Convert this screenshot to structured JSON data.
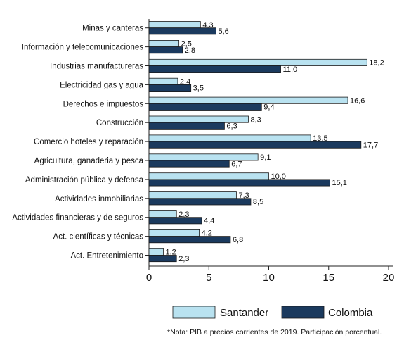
{
  "chart_data": {
    "type": "bar",
    "orientation": "horizontal",
    "categories": [
      "Minas y canteras",
      "Información y telecomunicaciones",
      "Industrias manufactureras",
      "Electricidad gas y agua",
      "Derechos e impuestos",
      "Construcción",
      "Comercio hoteles y reparación",
      "Agricultura, ganaderia y pesca",
      "Administración pública y defensa",
      "Actividades inmobiliarias",
      "Actividades financieras y de seguros",
      "Act. científicas y técnicas",
      "Act. Entretenimiento"
    ],
    "series": [
      {
        "name": "Santander",
        "color": "#b9e2f0",
        "values": [
          4.3,
          2.5,
          18.2,
          2.4,
          16.6,
          8.3,
          13.5,
          9.1,
          10.0,
          7.3,
          2.3,
          4.2,
          1.2
        ],
        "labels": [
          "4,3",
          "2,5",
          "18,2",
          "2,4",
          "16,6",
          "8,3",
          "13,5",
          "9,1",
          "10,0",
          "7,3",
          "2,3",
          "4,2",
          "1,2"
        ]
      },
      {
        "name": "Colombia",
        "color": "#1b3a5e",
        "values": [
          5.6,
          2.8,
          11.0,
          3.5,
          9.4,
          6.3,
          17.7,
          6.7,
          15.1,
          8.5,
          4.4,
          6.8,
          2.3
        ],
        "labels": [
          "5,6",
          "2,8",
          "11,0",
          "3,5",
          "9,4",
          "6,3",
          "17,7",
          "6,7",
          "15,1",
          "8,5",
          "4,4",
          "6,8",
          "2,3"
        ]
      }
    ],
    "xlim": [
      0,
      20
    ],
    "xticks": [
      0,
      5,
      10,
      15,
      20
    ],
    "grid": false,
    "legend": {
      "position": "bottom",
      "entries": [
        "Santander",
        "Colombia"
      ]
    },
    "note": "*Nota: PIB a precios corrientes de 2019. Participación porcentual."
  }
}
